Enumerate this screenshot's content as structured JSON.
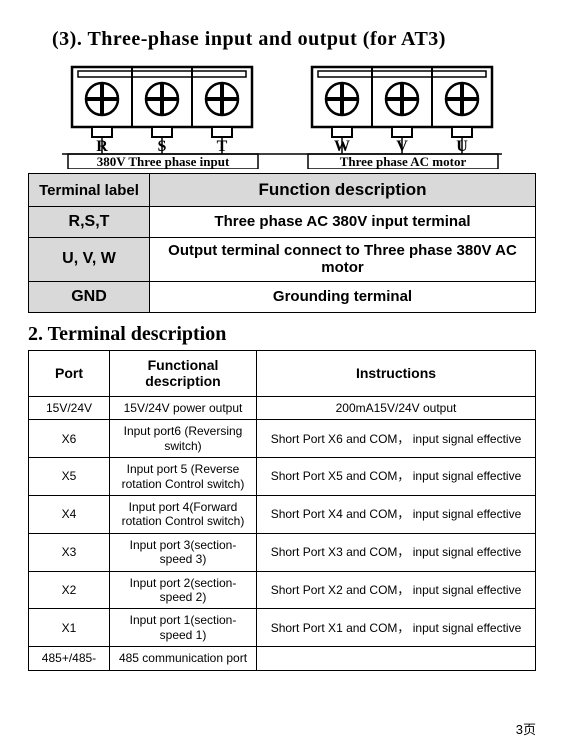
{
  "title": "(3). Three-phase input and output (for AT3)",
  "diagram": {
    "labels_left": [
      "R",
      "S",
      "T"
    ],
    "labels_right": [
      "W",
      "V",
      "U"
    ],
    "caption_left": "380V Three phase input",
    "caption_right": "Three phase AC motor",
    "block_fill": "#ffffff",
    "stroke": "#000000"
  },
  "table1": {
    "headers": [
      "Terminal label",
      "Function description"
    ],
    "rows": [
      {
        "label": "R,S,T",
        "desc": "Three phase AC 380V input terminal"
      },
      {
        "label": "U, V, W",
        "desc": "Output terminal connect to Three phase 380V AC motor"
      },
      {
        "label": "GND",
        "desc": "Grounding terminal"
      }
    ]
  },
  "sub_title": "2. Terminal description",
  "table2": {
    "headers": [
      "Port",
      "Functional description",
      "Instructions"
    ],
    "rows": [
      {
        "port": "15V/24V",
        "func": "15V/24V power output",
        "inst": "200mA15V/24V output"
      },
      {
        "port": "X6",
        "func": "Input port6 (Reversing  switch)",
        "inst": "Short Port X6 and COM， input signal effective"
      },
      {
        "port": "X5",
        "func": "Input port 5 (Reverse rotation Control switch)",
        "inst": "Short Port X5 and COM， input signal effective"
      },
      {
        "port": "X4",
        "func": "Input port 4(Forward rotation Control switch)",
        "inst": "Short Port X4 and COM， input signal effective"
      },
      {
        "port": "X3",
        "func": "Input port 3(section-speed 3)",
        "inst": "Short Port X3 and COM， input signal effective"
      },
      {
        "port": "X2",
        "func": "Input port 2(section-speed 2)",
        "inst": "Short Port X2 and COM， input signal effective"
      },
      {
        "port": "X1",
        "func": "Input port 1(section-speed 1)",
        "inst": "Short Port X1 and COM， input signal effective"
      },
      {
        "port": "485+/485-",
        "func": "485 communication port",
        "inst": ""
      }
    ]
  },
  "page_number": "3页"
}
